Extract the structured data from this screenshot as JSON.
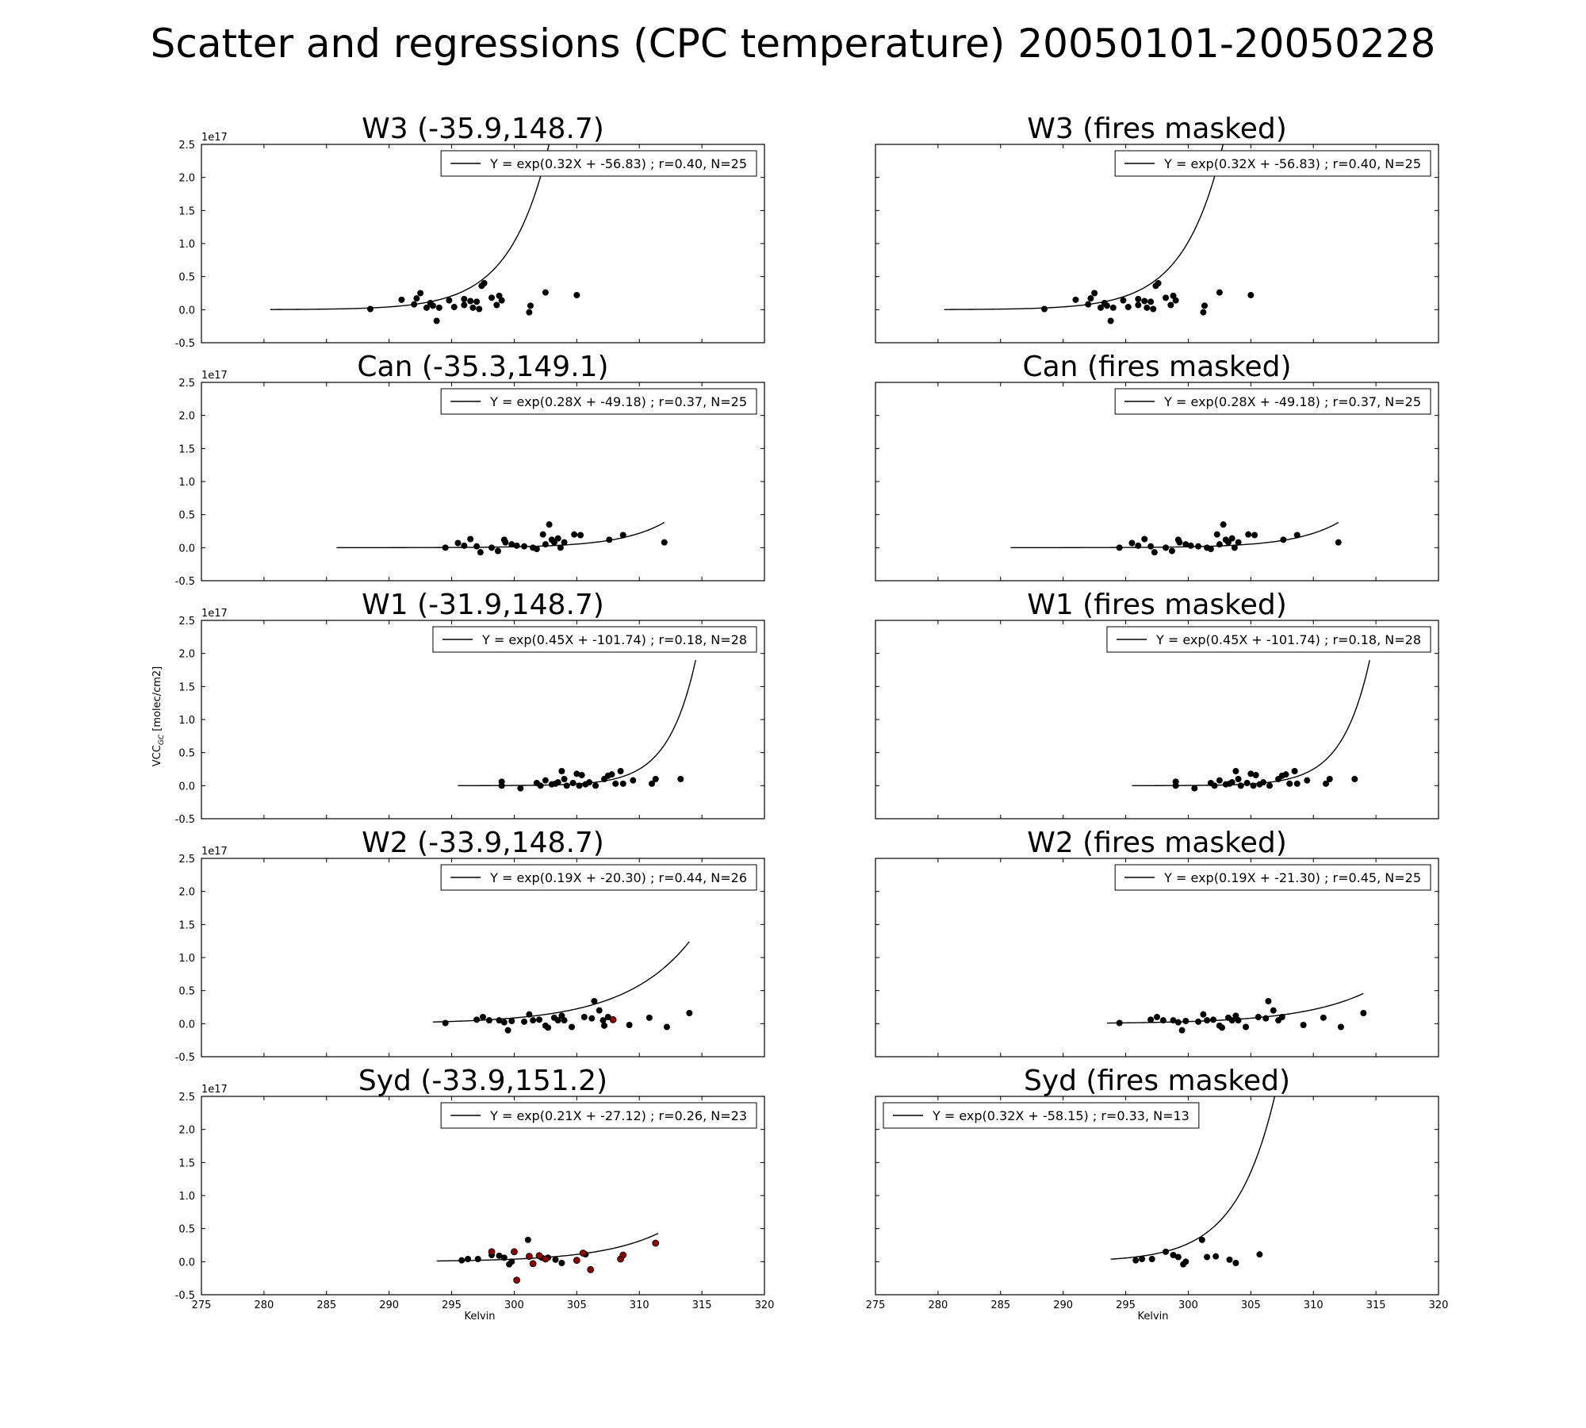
{
  "figure_title": "Scatter and regressions (CPC temperature) 20050101-20050228",
  "ylabel_base": "VCC",
  "ylabel_sub": "GC",
  "ylabel_unit": "[molec/cm2]",
  "xlabel": "Kelvin",
  "offset_label": "1e17",
  "colors": {
    "point": "#000000",
    "fire_point": "#8b0000",
    "line": "#000000"
  },
  "chart_data": [
    {
      "type": "scatter",
      "title": "W3 (-35.9,148.7)",
      "legend": "Y = exp(0.32X + -56.83) ; r=0.40, N=25",
      "legend_loc": "upper-right",
      "xlim": [
        275,
        320
      ],
      "ylim": [
        -0.5,
        2.5
      ],
      "fit_range": [
        280.5,
        305.0
      ],
      "fit": {
        "a": 0.32,
        "b": -56.83
      },
      "points": [
        [
          288.5,
          0.01
        ],
        [
          291,
          0.15
        ],
        [
          292,
          0.08
        ],
        [
          292.2,
          0.17
        ],
        [
          292.5,
          0.25
        ],
        [
          293,
          0.03
        ],
        [
          293.3,
          0.1
        ],
        [
          293.8,
          -0.17
        ],
        [
          293.5,
          0.06
        ],
        [
          294,
          0.03
        ],
        [
          294.8,
          0.14
        ],
        [
          295.2,
          0.04
        ],
        [
          296,
          0.16
        ],
        [
          296,
          0.07
        ],
        [
          296.5,
          0.13
        ],
        [
          296.7,
          0.03
        ],
        [
          297,
          0.12
        ],
        [
          297.2,
          0.01
        ],
        [
          297.4,
          0.36
        ],
        [
          297.6,
          0.4
        ],
        [
          298.2,
          0.18
        ],
        [
          298.6,
          0.07
        ],
        [
          298.8,
          0.21
        ],
        [
          299,
          0.14
        ],
        [
          301.2,
          -0.04
        ],
        [
          301.3,
          0.06
        ],
        [
          302.5,
          0.26
        ],
        [
          305,
          0.22
        ]
      ],
      "fire_points": []
    },
    {
      "type": "scatter",
      "title": "W3 (fires masked)",
      "legend": "Y = exp(0.32X + -56.83) ; r=0.40, N=25",
      "legend_loc": "upper-right",
      "xlim": [
        275,
        320
      ],
      "ylim": [
        -0.5,
        2.5
      ],
      "fit_range": [
        280.5,
        305.0
      ],
      "fit": {
        "a": 0.32,
        "b": -56.83
      },
      "points": [
        [
          288.5,
          0.01
        ],
        [
          291,
          0.15
        ],
        [
          292,
          0.08
        ],
        [
          292.2,
          0.17
        ],
        [
          292.5,
          0.25
        ],
        [
          293,
          0.03
        ],
        [
          293.3,
          0.1
        ],
        [
          293.8,
          -0.17
        ],
        [
          293.5,
          0.06
        ],
        [
          294,
          0.03
        ],
        [
          294.8,
          0.14
        ],
        [
          295.2,
          0.04
        ],
        [
          296,
          0.16
        ],
        [
          296,
          0.07
        ],
        [
          296.5,
          0.13
        ],
        [
          296.7,
          0.03
        ],
        [
          297,
          0.12
        ],
        [
          297.2,
          0.01
        ],
        [
          297.4,
          0.36
        ],
        [
          297.6,
          0.4
        ],
        [
          298.2,
          0.18
        ],
        [
          298.6,
          0.07
        ],
        [
          298.8,
          0.21
        ],
        [
          299,
          0.14
        ],
        [
          301.2,
          -0.04
        ],
        [
          301.3,
          0.06
        ],
        [
          302.5,
          0.26
        ],
        [
          305,
          0.22
        ]
      ],
      "fire_points": []
    },
    {
      "type": "scatter",
      "title": "Can (-35.3,149.1)",
      "legend": "Y = exp(0.28X + -49.18) ; r=0.37, N=25",
      "legend_loc": "upper-right",
      "xlim": [
        275,
        320
      ],
      "ylim": [
        -0.5,
        2.5
      ],
      "fit_range": [
        285.8,
        312.0
      ],
      "fit": {
        "a": 0.28,
        "b": -49.18
      },
      "points": [
        [
          294.5,
          0.0
        ],
        [
          295.5,
          0.07
        ],
        [
          296,
          0.03
        ],
        [
          296.5,
          0.13
        ],
        [
          297,
          0.02
        ],
        [
          297.3,
          -0.07
        ],
        [
          298.2,
          0.0
        ],
        [
          298.7,
          -0.05
        ],
        [
          299.2,
          0.12
        ],
        [
          299.3,
          0.08
        ],
        [
          299.8,
          0.05
        ],
        [
          300.2,
          0.03
        ],
        [
          300.8,
          0.02
        ],
        [
          301.5,
          0.0
        ],
        [
          301.8,
          -0.02
        ],
        [
          302.3,
          0.2
        ],
        [
          302.5,
          0.05
        ],
        [
          302.8,
          0.35
        ],
        [
          303,
          0.12
        ],
        [
          303.2,
          0.08
        ],
        [
          303.5,
          0.14
        ],
        [
          303.7,
          0.0
        ],
        [
          304,
          0.08
        ],
        [
          304.8,
          0.2
        ],
        [
          305.3,
          0.19
        ],
        [
          307.6,
          0.12
        ],
        [
          308.7,
          0.19
        ],
        [
          312,
          0.08
        ]
      ],
      "fire_points": []
    },
    {
      "type": "scatter",
      "title": "Can (fires masked)",
      "legend": "Y = exp(0.28X + -49.18) ; r=0.37, N=25",
      "legend_loc": "upper-right",
      "xlim": [
        275,
        320
      ],
      "ylim": [
        -0.5,
        2.5
      ],
      "fit_range": [
        285.8,
        312.0
      ],
      "fit": {
        "a": 0.28,
        "b": -49.18
      },
      "points": [
        [
          294.5,
          0.0
        ],
        [
          295.5,
          0.07
        ],
        [
          296,
          0.03
        ],
        [
          296.5,
          0.13
        ],
        [
          297,
          0.02
        ],
        [
          297.3,
          -0.07
        ],
        [
          298.2,
          0.0
        ],
        [
          298.7,
          -0.05
        ],
        [
          299.2,
          0.12
        ],
        [
          299.3,
          0.08
        ],
        [
          299.8,
          0.05
        ],
        [
          300.2,
          0.03
        ],
        [
          300.8,
          0.02
        ],
        [
          301.5,
          0.0
        ],
        [
          301.8,
          -0.02
        ],
        [
          302.3,
          0.2
        ],
        [
          302.5,
          0.05
        ],
        [
          302.8,
          0.35
        ],
        [
          303,
          0.12
        ],
        [
          303.2,
          0.08
        ],
        [
          303.5,
          0.14
        ],
        [
          303.7,
          0.0
        ],
        [
          304,
          0.08
        ],
        [
          304.8,
          0.2
        ],
        [
          305.3,
          0.19
        ],
        [
          307.6,
          0.12
        ],
        [
          308.7,
          0.19
        ],
        [
          312,
          0.08
        ]
      ],
      "fire_points": []
    },
    {
      "type": "scatter",
      "title": "W1 (-31.9,148.7)",
      "legend": "Y = exp(0.45X + -101.74) ; r=0.18, N=28",
      "legend_loc": "upper-right",
      "xlim": [
        275,
        320
      ],
      "ylim": [
        -0.5,
        2.5
      ],
      "fit_range": [
        295.5,
        314.5
      ],
      "fit": {
        "a": 0.45,
        "b": -101.74
      },
      "points": [
        [
          299,
          0.0
        ],
        [
          299,
          0.06
        ],
        [
          300.5,
          -0.04
        ],
        [
          301.8,
          0.04
        ],
        [
          302.1,
          0.0
        ],
        [
          302.5,
          0.08
        ],
        [
          303,
          0.02
        ],
        [
          303.3,
          0.03
        ],
        [
          303.5,
          0.05
        ],
        [
          303.8,
          0.22
        ],
        [
          304,
          0.1
        ],
        [
          304.2,
          0.0
        ],
        [
          304.7,
          0.04
        ],
        [
          305,
          0.18
        ],
        [
          305.2,
          0.0
        ],
        [
          305.4,
          0.16
        ],
        [
          305.7,
          0.02
        ],
        [
          306,
          0.05
        ],
        [
          306.5,
          0.0
        ],
        [
          307.2,
          0.1
        ],
        [
          307.5,
          0.15
        ],
        [
          307.8,
          0.17
        ],
        [
          308.1,
          0.03
        ],
        [
          308.5,
          0.22
        ],
        [
          308.7,
          0.03
        ],
        [
          309.5,
          0.08
        ],
        [
          311,
          0.03
        ],
        [
          311.3,
          0.1
        ],
        [
          313.3,
          0.1
        ]
      ],
      "fire_points": []
    },
    {
      "type": "scatter",
      "title": "W1 (fires masked)",
      "legend": "Y = exp(0.45X + -101.74) ; r=0.18, N=28",
      "legend_loc": "upper-right",
      "xlim": [
        275,
        320
      ],
      "ylim": [
        -0.5,
        2.5
      ],
      "fit_range": [
        295.5,
        314.5
      ],
      "fit": {
        "a": 0.45,
        "b": -101.74
      },
      "points": [
        [
          299,
          0.0
        ],
        [
          299,
          0.06
        ],
        [
          300.5,
          -0.04
        ],
        [
          301.8,
          0.04
        ],
        [
          302.1,
          0.0
        ],
        [
          302.5,
          0.08
        ],
        [
          303,
          0.02
        ],
        [
          303.3,
          0.03
        ],
        [
          303.5,
          0.05
        ],
        [
          303.8,
          0.22
        ],
        [
          304,
          0.1
        ],
        [
          304.2,
          0.0
        ],
        [
          304.7,
          0.04
        ],
        [
          305,
          0.18
        ],
        [
          305.2,
          0.0
        ],
        [
          305.4,
          0.16
        ],
        [
          305.7,
          0.02
        ],
        [
          306,
          0.05
        ],
        [
          306.5,
          0.0
        ],
        [
          307.2,
          0.1
        ],
        [
          307.5,
          0.15
        ],
        [
          307.8,
          0.17
        ],
        [
          308.1,
          0.03
        ],
        [
          308.5,
          0.22
        ],
        [
          308.7,
          0.03
        ],
        [
          309.5,
          0.08
        ],
        [
          311,
          0.03
        ],
        [
          311.3,
          0.1
        ],
        [
          313.3,
          0.1
        ]
      ],
      "fire_points": []
    },
    {
      "type": "scatter",
      "title": "W2 (-33.9,148.7)",
      "legend": "Y = exp(0.19X + -20.30) ; r=0.44, N=26",
      "legend_loc": "upper-right",
      "xlim": [
        275,
        320
      ],
      "ylim": [
        -0.5,
        2.5
      ],
      "fit_range": [
        293.5,
        314.0
      ],
      "fit": {
        "a": 0.19,
        "b": -20.3
      },
      "points": [
        [
          294.5,
          0.01
        ],
        [
          297,
          0.06
        ],
        [
          297.5,
          0.1
        ],
        [
          298,
          0.05
        ],
        [
          298.8,
          0.05
        ],
        [
          299.2,
          0.02
        ],
        [
          299.5,
          -0.1
        ],
        [
          299.8,
          0.04
        ],
        [
          300.8,
          0.03
        ],
        [
          301.2,
          0.14
        ],
        [
          301.5,
          0.05
        ],
        [
          302,
          0.06
        ],
        [
          302.5,
          -0.03
        ],
        [
          302.7,
          -0.06
        ],
        [
          303.2,
          0.09
        ],
        [
          303.5,
          0.05
        ],
        [
          303.8,
          0.12
        ],
        [
          304,
          0.05
        ],
        [
          304.6,
          -0.05
        ],
        [
          305.6,
          0.1
        ],
        [
          306.2,
          0.08
        ],
        [
          306.4,
          0.34
        ],
        [
          306.8,
          0.2
        ],
        [
          307.1,
          0.05
        ],
        [
          307.2,
          -0.03
        ],
        [
          307.5,
          0.1
        ],
        [
          309.2,
          -0.02
        ],
        [
          310.8,
          0.09
        ],
        [
          312.2,
          -0.05
        ],
        [
          314,
          0.16
        ]
      ],
      "fire_points": [
        [
          307.9,
          0.06
        ]
      ]
    },
    {
      "type": "scatter",
      "title": "W2 (fires masked)",
      "legend": "Y = exp(0.19X + -21.30) ; r=0.45, N=25",
      "legend_loc": "upper-right",
      "xlim": [
        275,
        320
      ],
      "ylim": [
        -0.5,
        2.5
      ],
      "fit_range": [
        293.5,
        314.0
      ],
      "fit": {
        "a": 0.19,
        "b": -21.3
      },
      "points": [
        [
          294.5,
          0.01
        ],
        [
          297,
          0.06
        ],
        [
          297.5,
          0.1
        ],
        [
          298,
          0.05
        ],
        [
          298.8,
          0.05
        ],
        [
          299.2,
          0.02
        ],
        [
          299.5,
          -0.1
        ],
        [
          299.8,
          0.04
        ],
        [
          300.8,
          0.03
        ],
        [
          301.2,
          0.14
        ],
        [
          301.5,
          0.05
        ],
        [
          302,
          0.06
        ],
        [
          302.5,
          -0.03
        ],
        [
          302.7,
          -0.06
        ],
        [
          303.2,
          0.09
        ],
        [
          303.5,
          0.05
        ],
        [
          303.8,
          0.12
        ],
        [
          304,
          0.05
        ],
        [
          304.6,
          -0.05
        ],
        [
          305.6,
          0.1
        ],
        [
          306.2,
          0.08
        ],
        [
          306.4,
          0.34
        ],
        [
          306.8,
          0.2
        ],
        [
          307.2,
          0.05
        ],
        [
          307.5,
          0.1
        ],
        [
          309.2,
          -0.02
        ],
        [
          310.8,
          0.09
        ],
        [
          312.2,
          -0.05
        ],
        [
          314,
          0.16
        ]
      ],
      "fire_points": []
    },
    {
      "type": "scatter",
      "title": "Syd (-33.9,151.2)",
      "legend": "Y = exp(0.21X + -27.12) ; r=0.26, N=23",
      "legend_loc": "upper-right",
      "xlim": [
        275,
        320
      ],
      "ylim": [
        -0.5,
        2.5
      ],
      "fit_range": [
        293.8,
        311.5
      ],
      "fit": {
        "a": 0.21,
        "b": -27.12
      },
      "points": [
        [
          295.8,
          0.02
        ],
        [
          296.3,
          0.04
        ],
        [
          297.1,
          0.04
        ],
        [
          298.2,
          0.1
        ],
        [
          298.8,
          0.09
        ],
        [
          299.2,
          0.06
        ],
        [
          299.6,
          -0.04
        ],
        [
          299.8,
          0.0
        ],
        [
          301.1,
          0.33
        ],
        [
          302.2,
          0.06
        ],
        [
          302.7,
          0.06
        ],
        [
          303.3,
          0.03
        ],
        [
          303.8,
          -0.02
        ],
        [
          305.7,
          0.11
        ]
      ],
      "fire_points": [
        [
          298.2,
          0.15
        ],
        [
          300,
          0.15
        ],
        [
          300.2,
          -0.28
        ],
        [
          301.2,
          0.08
        ],
        [
          301.5,
          -0.03
        ],
        [
          302,
          0.09
        ],
        [
          302.5,
          0.04
        ],
        [
          305,
          0.02
        ],
        [
          305.5,
          0.13
        ],
        [
          306.1,
          -0.12
        ],
        [
          308.5,
          0.04
        ],
        [
          308.7,
          0.1
        ],
        [
          311.3,
          0.28
        ]
      ]
    },
    {
      "type": "scatter",
      "title": "Syd (fires masked)",
      "legend": "Y = exp(0.32X + -58.15) ; r=0.33, N=13",
      "legend_loc": "upper-left",
      "xlim": [
        275,
        320
      ],
      "ylim": [
        -0.5,
        2.5
      ],
      "fit_range": [
        293.8,
        311.5
      ],
      "fit": {
        "a": 0.32,
        "b": -58.15
      },
      "points": [
        [
          295.8,
          0.02
        ],
        [
          296.3,
          0.04
        ],
        [
          297.1,
          0.04
        ],
        [
          298.2,
          0.15
        ],
        [
          298.8,
          0.1
        ],
        [
          299.2,
          0.07
        ],
        [
          299.6,
          -0.04
        ],
        [
          299.8,
          0.0
        ],
        [
          301.1,
          0.33
        ],
        [
          301.5,
          0.07
        ],
        [
          302.2,
          0.08
        ],
        [
          303.3,
          0.03
        ],
        [
          303.8,
          -0.02
        ],
        [
          305.7,
          0.11
        ]
      ],
      "fire_points": []
    }
  ]
}
